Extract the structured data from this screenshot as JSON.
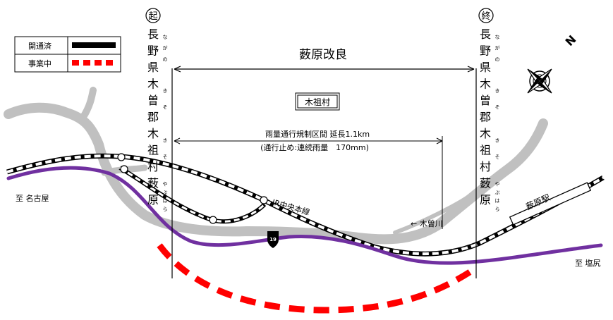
{
  "legend": {
    "open": {
      "label": "開通済",
      "color": "#000000"
    },
    "under_construction": {
      "label": "事業中",
      "color": "#ff0000"
    }
  },
  "start": {
    "mark": "起",
    "place_chars": [
      "長",
      "野",
      "県",
      "木",
      "曽",
      "郡",
      "木",
      "祖",
      "村",
      "薮",
      "原"
    ],
    "furigana": [
      "ながの",
      "きそ",
      "きそ",
      "やぶはら"
    ]
  },
  "end": {
    "mark": "終",
    "place_chars": [
      "長",
      "野",
      "県",
      "木",
      "曽",
      "郡",
      "木",
      "祖",
      "村",
      "薮",
      "原"
    ],
    "furigana": [
      "ながの",
      "きそ",
      "きそ",
      "やぶはら"
    ]
  },
  "project_name": "薮原改良",
  "village_box": "木祖村",
  "rain_section": {
    "line1": "雨量通行規制区間 延長1.1km",
    "line2": "(通行止め:連続雨量　170mm)"
  },
  "railway_label": "JR中央本線",
  "river_label": "← 木曽川",
  "station_label": "薮原駅",
  "route_badge": "19",
  "dest_left": "至 名古屋",
  "dest_right": "至 塩尻",
  "compass": {
    "north_label": "N",
    "icon": "compass-rose-icon"
  },
  "colors": {
    "road": "#7030a0",
    "river": "#c0c0c0",
    "construction": "#ff0000",
    "rail": "#000000"
  }
}
